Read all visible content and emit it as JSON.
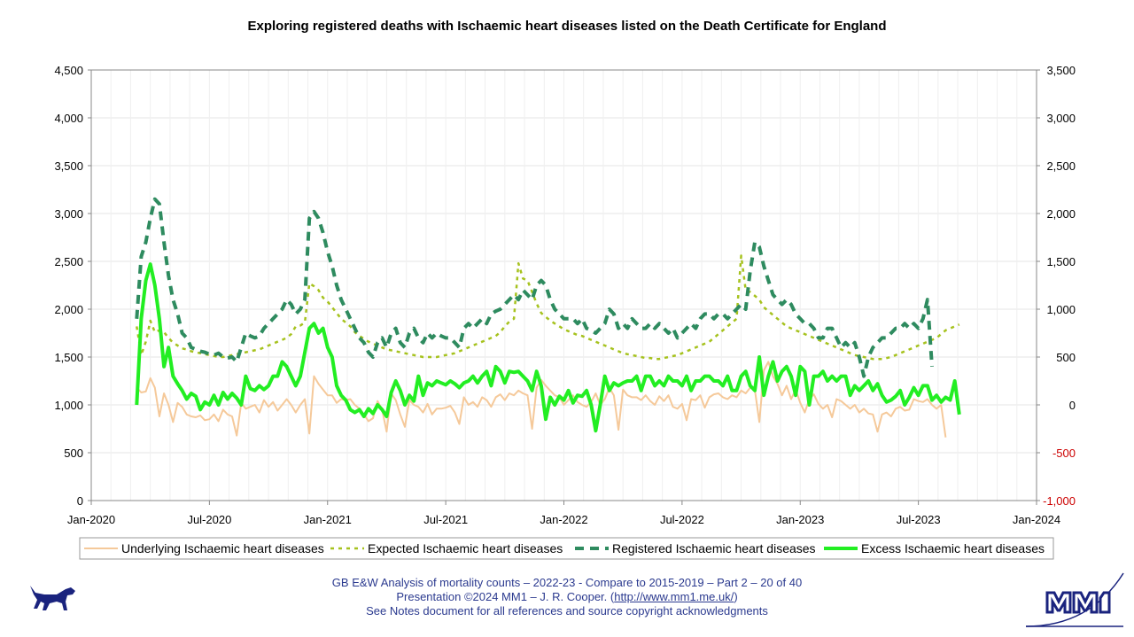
{
  "chart_data": {
    "type": "line",
    "title": "Exploring registered deaths with Ischaemic heart diseases listed on the Death Certificate for England",
    "x_tick_labels": [
      "Jan-2020",
      "Jul-2020",
      "Jan-2021",
      "Jul-2021",
      "Jan-2022",
      "Jul-2022",
      "Jan-2023",
      "Jul-2023",
      "Jan-2024"
    ],
    "x_range_weeks": [
      0,
      208
    ],
    "left_axis": {
      "ylim": [
        0,
        4500
      ],
      "ticks": [
        "4,500",
        "4,000",
        "3,500",
        "3,000",
        "2,500",
        "2,000",
        "1,500",
        "1,000",
        "500",
        "0"
      ]
    },
    "right_axis": {
      "ylim": [
        -1000,
        3500
      ],
      "ticks": [
        "3,500",
        "3,000",
        "2,500",
        "2,000",
        "1,500",
        "1,000",
        "500",
        "0",
        "-500",
        "-1,000"
      ],
      "negative_color": "#cc0000"
    },
    "series": [
      {
        "name": "Underlying Ischaemic heart diseases",
        "axis": "left",
        "color": "#f5c99a",
        "style": "solid",
        "values": [
          1180,
          1130,
          1140,
          1280,
          1180,
          880,
          1120,
          1000,
          820,
          1020,
          980,
          900,
          880,
          870,
          890,
          840,
          850,
          900,
          830,
          950,
          900,
          880,
          680,
          1020,
          960,
          980,
          1000,
          920,
          1050,
          980,
          1030,
          940,
          1000,
          1060,
          1000,
          920,
          1000,
          1060,
          700,
          1300,
          1220,
          1160,
          1100,
          1100,
          1020,
          1060,
          1050,
          1060,
          1000,
          960,
          900,
          830,
          860,
          1040,
          950,
          720,
          1120,
          1050,
          900,
          770,
          1050,
          1000,
          980,
          920,
          1010,
          900,
          960,
          960,
          970,
          990,
          920,
          800,
          1080,
          1000,
          1030,
          980,
          1080,
          1050,
          980,
          1080,
          1110,
          1050,
          1120,
          1100,
          1150,
          1120,
          1100,
          750,
          1180,
          1260,
          1200,
          1150,
          1100,
          1080,
          1000,
          1050,
          1100,
          1030,
          1000,
          980,
          1030,
          1120,
          1000,
          1060,
          1180,
          1100,
          740,
          1160,
          1100,
          1080,
          1080,
          1050,
          1100,
          1040,
          1000,
          1090,
          1040,
          1100,
          980,
          960,
          1010,
          840,
          1060,
          1050,
          1100,
          970,
          1080,
          1110,
          1120,
          1080,
          1060,
          1100,
          1080,
          1150,
          1120,
          1180,
          1160,
          820,
          1360,
          1450,
          1300,
          1220,
          1100,
          1200,
          1060,
          1160,
          1020,
          920,
          1060,
          1110,
          1010,
          960,
          1000,
          870,
          1060,
          1040,
          1000,
          960,
          1000,
          920,
          960,
          910,
          900,
          720,
          900,
          920,
          880,
          960,
          980,
          940,
          950,
          1060,
          1040,
          1030,
          1060,
          1000,
          960,
          1000,
          660
        ],
        "start_week": 10
      },
      {
        "name": "Expected Ischaemic heart diseases",
        "axis": "right",
        "color": "#a6c21e",
        "style": "dotted",
        "values": [
          820,
          520,
          660,
          880,
          760,
          780,
          760,
          700,
          650,
          620,
          590,
          580,
          560,
          550,
          540,
          530,
          520,
          510,
          500,
          500,
          510,
          520,
          530,
          540,
          550,
          560,
          570,
          580,
          600,
          620,
          640,
          660,
          680,
          700,
          740,
          820,
          830,
          860,
          1270,
          1240,
          1200,
          1120,
          1080,
          1020,
          960,
          900,
          860,
          820,
          760,
          720,
          690,
          660,
          640,
          620,
          600,
          580,
          570,
          560,
          550,
          540,
          530,
          520,
          510,
          500,
          500,
          500,
          500,
          510,
          520,
          530,
          540,
          560,
          580,
          600,
          620,
          640,
          660,
          680,
          700,
          720,
          760,
          820,
          870,
          900,
          1480,
          1320,
          1300,
          1180,
          1060,
          960,
          920,
          880,
          850,
          820,
          790,
          770,
          750,
          730,
          720,
          700,
          680,
          660,
          640,
          620,
          600,
          580,
          560,
          540,
          530,
          520,
          510,
          500,
          490,
          490,
          480,
          480,
          490,
          500,
          510,
          520,
          540,
          560,
          580,
          600,
          620,
          640,
          660,
          700,
          740,
          780,
          820,
          860,
          900,
          1560,
          1200,
          1180,
          1140,
          1100,
          1020,
          980,
          940,
          900,
          860,
          820,
          800,
          780,
          760,
          740,
          720,
          700,
          680,
          660,
          640,
          620,
          600,
          580,
          560,
          540,
          520,
          510,
          500,
          490,
          480,
          480,
          480,
          490,
          500,
          520,
          540,
          560,
          580,
          600,
          620,
          640,
          660,
          680,
          700,
          740,
          780,
          800,
          820,
          840
        ],
        "start_week": 10
      },
      {
        "name": "Registered Ischaemic heart diseases",
        "axis": "left",
        "color": "#2e8b5f",
        "style": "dashed",
        "values": [
          1900,
          2550,
          2700,
          2950,
          3150,
          3100,
          2700,
          2350,
          2100,
          1950,
          1750,
          1700,
          1600,
          1580,
          1560,
          1550,
          1530,
          1520,
          1540,
          1500,
          1490,
          1500,
          1450,
          1600,
          1750,
          1720,
          1700,
          1720,
          1800,
          1850,
          1900,
          1950,
          2000,
          2100,
          2050,
          1950,
          2000,
          2100,
          2950,
          3020,
          2950,
          2800,
          2600,
          2450,
          2250,
          2100,
          2000,
          1900,
          1800,
          1700,
          1650,
          1550,
          1500,
          1650,
          1700,
          1600,
          1750,
          1800,
          1650,
          1600,
          1750,
          1800,
          1700,
          1650,
          1750,
          1700,
          1750,
          1720,
          1700,
          1700,
          1650,
          1600,
          1800,
          1850,
          1800,
          1850,
          1900,
          1850,
          1950,
          1980,
          2000,
          2050,
          2100,
          2150,
          2100,
          2200,
          2150,
          2100,
          2250,
          2300,
          2250,
          2100,
          2000,
          1950,
          1900,
          1900,
          1900,
          1850,
          1900,
          1800,
          1780,
          1750,
          1800,
          1850,
          2000,
          1950,
          1800,
          1850,
          1800,
          1900,
          1850,
          1800,
          1800,
          1850,
          1800,
          1850,
          1800,
          1750,
          1800,
          1700,
          1750,
          1800,
          1850,
          1800,
          1900,
          1950,
          1950,
          1900,
          1950,
          1950,
          1900,
          1950,
          2000,
          2050,
          2000,
          2400,
          2700,
          2650,
          2450,
          2300,
          2150,
          2100,
          2050,
          2100,
          2050,
          1950,
          1900,
          1850,
          1850,
          1800,
          1700,
          1700,
          1800,
          1800,
          1700,
          1600,
          1650,
          1600,
          1650,
          1500,
          1300,
          1500,
          1600,
          1650,
          1700,
          1700,
          1750,
          1800,
          1800,
          1850,
          1800,
          1850,
          1800,
          1900,
          2100,
          1400
        ],
        "start_week": 10
      },
      {
        "name": "Excess Ischaemic heart diseases",
        "axis": "right",
        "color": "#22ee22",
        "style": "solid-thick",
        "values": [
          0,
          900,
          1300,
          1470,
          1250,
          900,
          400,
          600,
          300,
          220,
          150,
          60,
          120,
          90,
          -50,
          30,
          0,
          100,
          0,
          130,
          60,
          120,
          70,
          0,
          300,
          170,
          150,
          200,
          160,
          200,
          300,
          300,
          450,
          400,
          300,
          200,
          300,
          550,
          800,
          850,
          750,
          800,
          600,
          500,
          200,
          100,
          50,
          -50,
          -80,
          -50,
          -120,
          -40,
          -90,
          0,
          -50,
          -120,
          130,
          250,
          150,
          0,
          100,
          40,
          300,
          100,
          230,
          200,
          250,
          230,
          210,
          250,
          220,
          180,
          230,
          250,
          300,
          230,
          300,
          350,
          200,
          400,
          350,
          230,
          350,
          340,
          350,
          300,
          250,
          150,
          350,
          200,
          -150,
          80,
          0,
          90,
          50,
          150,
          20,
          100,
          90,
          150,
          0,
          -270,
          0,
          300,
          150,
          230,
          200,
          230,
          250,
          250,
          300,
          150,
          300,
          300,
          200,
          250,
          200,
          300,
          250,
          250,
          200,
          300,
          150,
          250,
          250,
          300,
          300,
          250,
          250,
          200,
          300,
          150,
          150,
          300,
          350,
          200,
          150,
          500,
          100,
          300,
          450,
          250,
          350,
          400,
          300,
          100,
          400,
          350,
          0,
          300,
          300,
          350,
          250,
          300,
          250,
          300,
          300,
          100,
          200,
          150,
          200,
          250,
          150,
          220,
          100,
          30,
          50,
          90,
          150,
          0,
          80,
          180,
          100,
          200,
          200,
          50,
          100,
          30,
          80,
          50,
          250,
          -100
        ],
        "start_week": 10
      }
    ]
  },
  "footer": {
    "line1": "GB E&W Analysis of mortality counts – 2022-23 - Compare to 2015-2019 – Part 2 – 20 of 40",
    "line2_prefix": "Presentation ©2024 MM1 – J. R. Cooper. (",
    "line2_link": "http://www.mm1.me.uk/",
    "line2_suffix": ")",
    "line3": "See Notes document for all references and source copyright acknowledgments"
  },
  "logos": {
    "left": "dog-logo",
    "right": "mm1-logo"
  }
}
